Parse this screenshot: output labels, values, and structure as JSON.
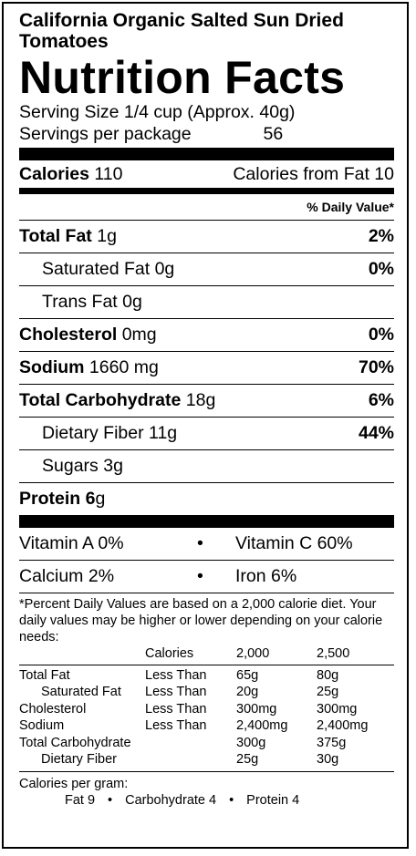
{
  "product_name": "California Organic Salted Sun Dried Tomatoes",
  "title": "Nutrition Facts",
  "serving_size": "Serving Size 1/4 cup (Approx. 40g)",
  "servings_label": "Servings per package",
  "servings_value": "56",
  "calories": {
    "label": "Calories",
    "value": "110",
    "from_fat": "Calories from Fat 10"
  },
  "daily_value_header": "% Daily Value*",
  "nutrients": [
    {
      "name": "Total Fat",
      "amount": "1g",
      "pct": "2%"
    },
    {
      "name": "Saturated Fat",
      "amount": "0g",
      "pct": "0%"
    },
    {
      "name": "Trans Fat",
      "amount": "0g",
      "pct": ""
    },
    {
      "name": "Cholesterol",
      "amount": "0mg",
      "pct": "0%"
    },
    {
      "name": "Sodium",
      "amount": "1660 mg",
      "pct": "70%"
    },
    {
      "name": "Total Carbohydrate",
      "amount": "18g",
      "pct": "6%"
    },
    {
      "name": "Dietary Fiber",
      "amount": "11g",
      "pct": "44%"
    },
    {
      "name": "Sugars",
      "amount": "3g",
      "pct": ""
    },
    {
      "name": "Protein",
      "amount": "g",
      "bold_amount": "6",
      "pct": ""
    }
  ],
  "vitamins": [
    {
      "left": "Vitamin A 0%",
      "right": "Vitamin C 60%"
    },
    {
      "left": "Calcium 2%",
      "right": "Iron 6%"
    }
  ],
  "bullet": "•",
  "footnote": "*Percent Daily Values are based on a 2,000 calorie diet. Your daily values may be higher or lower depending on your calorie needs:",
  "ref_table": {
    "header": [
      "",
      "Calories",
      "2,000",
      "2,500"
    ],
    "rows": [
      [
        "Total Fat",
        "Less Than",
        "65g",
        "80g"
      ],
      [
        "Saturated Fat",
        "Less Than",
        "20g",
        "25g"
      ],
      [
        "Cholesterol",
        "Less Than",
        "300mg",
        "300mg"
      ],
      [
        "Sodium",
        "Less Than",
        "2,400mg",
        "2,400mg"
      ],
      [
        "Total Carbohydrate",
        "",
        "300g",
        "375g"
      ],
      [
        "Dietary Fiber",
        "",
        "25g",
        "30g"
      ]
    ]
  },
  "calories_per_gram": {
    "label": "Calories per gram:",
    "items": [
      "Fat 9",
      "Carbohydrate 4",
      "Protein 4"
    ]
  }
}
